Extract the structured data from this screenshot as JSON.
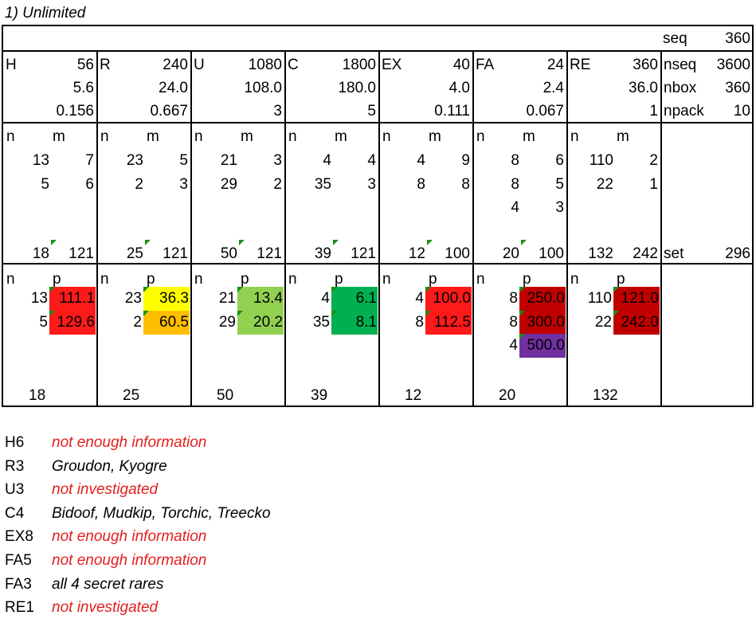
{
  "title": "1) Unlimited",
  "header": {
    "seq_label": "seq",
    "seq_value": "360"
  },
  "summary": [
    {
      "label": "H",
      "total": "56",
      "avg": "5.6",
      "ratio": "0.156"
    },
    {
      "label": "R",
      "total": "240",
      "avg": "24.0",
      "ratio": "0.667"
    },
    {
      "label": "U",
      "total": "1080",
      "avg": "108.0",
      "ratio": "3"
    },
    {
      "label": "C",
      "total": "1800",
      "avg": "180.0",
      "ratio": "5"
    },
    {
      "label": "EX",
      "total": "40",
      "avg": "4.0",
      "ratio": "0.111"
    },
    {
      "label": "FA",
      "total": "24",
      "avg": "2.4",
      "ratio": "0.067"
    },
    {
      "label": "RE",
      "total": "360",
      "avg": "36.0",
      "ratio": "1"
    }
  ],
  "side": {
    "nseq_label": "nseq",
    "nseq_value": "3600",
    "nbox_label": "nbox",
    "nbox_value": "360",
    "npack_label": "npack",
    "npack_value": "10",
    "set_label": "set",
    "set_value": "296"
  },
  "nm_headers": {
    "n": "n",
    "m": "m"
  },
  "np_headers": {
    "n": "n",
    "p": "p"
  },
  "nm_blocks": [
    {
      "rows": [
        {
          "n": "13",
          "m": "7"
        },
        {
          "n": "5",
          "m": "6"
        }
      ],
      "sum_n": "18",
      "sum_m": "121"
    },
    {
      "rows": [
        {
          "n": "23",
          "m": "5"
        },
        {
          "n": "2",
          "m": "3"
        }
      ],
      "sum_n": "25",
      "sum_m": "121"
    },
    {
      "rows": [
        {
          "n": "21",
          "m": "3"
        },
        {
          "n": "29",
          "m": "2"
        }
      ],
      "sum_n": "50",
      "sum_m": "121"
    },
    {
      "rows": [
        {
          "n": "4",
          "m": "4"
        },
        {
          "n": "35",
          "m": "3"
        }
      ],
      "sum_n": "39",
      "sum_m": "121"
    },
    {
      "rows": [
        {
          "n": "4",
          "m": "9"
        },
        {
          "n": "8",
          "m": "8"
        }
      ],
      "sum_n": "12",
      "sum_m": "100"
    },
    {
      "rows": [
        {
          "n": "8",
          "m": "6"
        },
        {
          "n": "8",
          "m": "5"
        },
        {
          "n": "4",
          "m": "3"
        }
      ],
      "sum_n": "20",
      "sum_m": "100"
    },
    {
      "rows": [
        {
          "n": "110",
          "m": "2"
        },
        {
          "n": "22",
          "m": "1"
        }
      ],
      "sum_n": "132",
      "sum_m": "242"
    }
  ],
  "np_blocks": [
    {
      "rows": [
        {
          "n": "13",
          "p": "111.1",
          "color": "#ff1a1a"
        },
        {
          "n": "5",
          "p": "129.6",
          "color": "#ff1a1a"
        }
      ],
      "sum_n": "18"
    },
    {
      "rows": [
        {
          "n": "23",
          "p": "36.3",
          "color": "#ffff00"
        },
        {
          "n": "2",
          "p": "60.5",
          "color": "#ffbf00"
        }
      ],
      "sum_n": "25"
    },
    {
      "rows": [
        {
          "n": "21",
          "p": "13.4",
          "color": "#92d050"
        },
        {
          "n": "29",
          "p": "20.2",
          "color": "#92d050"
        }
      ],
      "sum_n": "50"
    },
    {
      "rows": [
        {
          "n": "4",
          "p": "6.1",
          "color": "#00b050"
        },
        {
          "n": "35",
          "p": "8.1",
          "color": "#00b050"
        }
      ],
      "sum_n": "39"
    },
    {
      "rows": [
        {
          "n": "4",
          "p": "100.0",
          "color": "#ff1a1a"
        },
        {
          "n": "8",
          "p": "112.5",
          "color": "#ff1a1a"
        }
      ],
      "sum_n": "12"
    },
    {
      "rows": [
        {
          "n": "8",
          "p": "250.0",
          "color": "#c00000"
        },
        {
          "n": "8",
          "p": "300.0",
          "color": "#c00000"
        },
        {
          "n": "4",
          "p": "500.0",
          "color": "#7030a0"
        }
      ],
      "sum_n": "20"
    },
    {
      "rows": [
        {
          "n": "110",
          "p": "121.0",
          "color": "#c00000"
        },
        {
          "n": "22",
          "p": "242.0",
          "color": "#c00000"
        }
      ],
      "sum_n": "132"
    }
  ],
  "notes": [
    {
      "key": "H6",
      "text": "not enough information",
      "red": true
    },
    {
      "key": "R3",
      "text": "Groudon, Kyogre",
      "red": false
    },
    {
      "key": "U3",
      "text": "not investigated",
      "red": true
    },
    {
      "key": "C4",
      "text": "Bidoof, Mudkip, Torchic, Treecko",
      "red": false
    },
    {
      "key": "EX8",
      "text": "not enough information",
      "red": true
    },
    {
      "key": "FA5",
      "text": "not enough information",
      "red": true
    },
    {
      "key": "FA3",
      "text": "all 4 secret rares",
      "red": false
    },
    {
      "key": "RE1",
      "text": "not investigated",
      "red": true
    }
  ]
}
